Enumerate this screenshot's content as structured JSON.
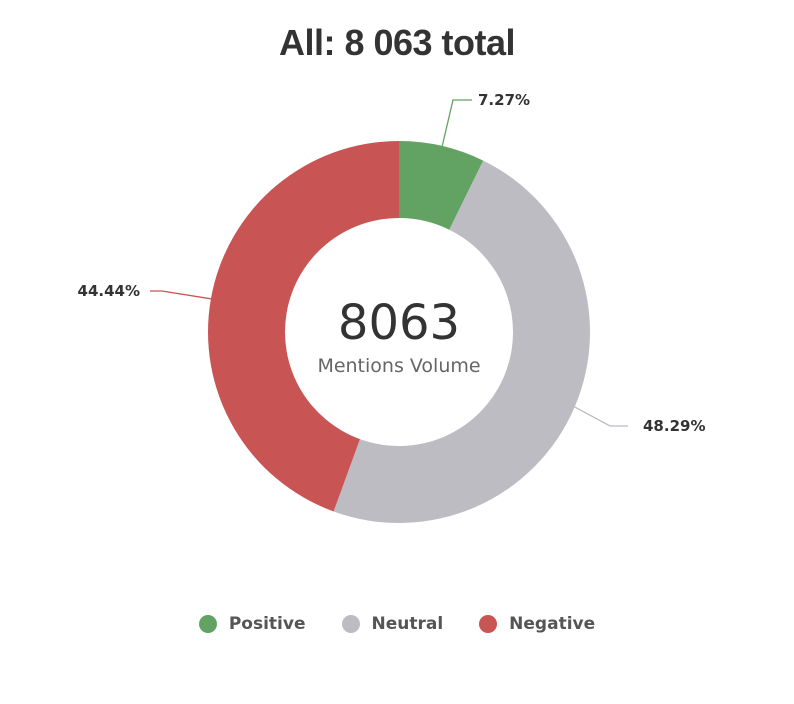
{
  "chart_data": {
    "type": "pie",
    "title": "All: 8 063 total",
    "center_value": "8063",
    "center_caption": "Mentions Volume",
    "slices": [
      {
        "name": "Positive",
        "percent": 7.27,
        "label": "7.27%",
        "color": "#62a262"
      },
      {
        "name": "Neutral",
        "percent": 48.29,
        "label": "48.29%",
        "color": "#bcbcc2"
      },
      {
        "name": "Negative",
        "percent": 44.44,
        "label": "44.44%",
        "color": "#c95454"
      }
    ],
    "legend_position": "bottom"
  }
}
